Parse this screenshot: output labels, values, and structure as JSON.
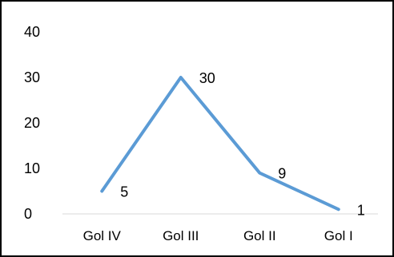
{
  "chart_data": {
    "type": "line",
    "categories": [
      "Gol IV",
      "Gol III",
      "Gol II",
      "Gol I"
    ],
    "series": [
      {
        "values": [
          5,
          30,
          9,
          1
        ]
      }
    ],
    "data_labels": [
      "5",
      "30",
      "9",
      "1"
    ],
    "yticks": [
      "0",
      "10",
      "20",
      "30",
      "40"
    ],
    "ylim": [
      0,
      40
    ],
    "title": "",
    "xlabel": "",
    "ylabel": "",
    "grid": false,
    "legend": "none",
    "line_color": "#5B9BD5",
    "axis_color": "#D9D9D9"
  }
}
